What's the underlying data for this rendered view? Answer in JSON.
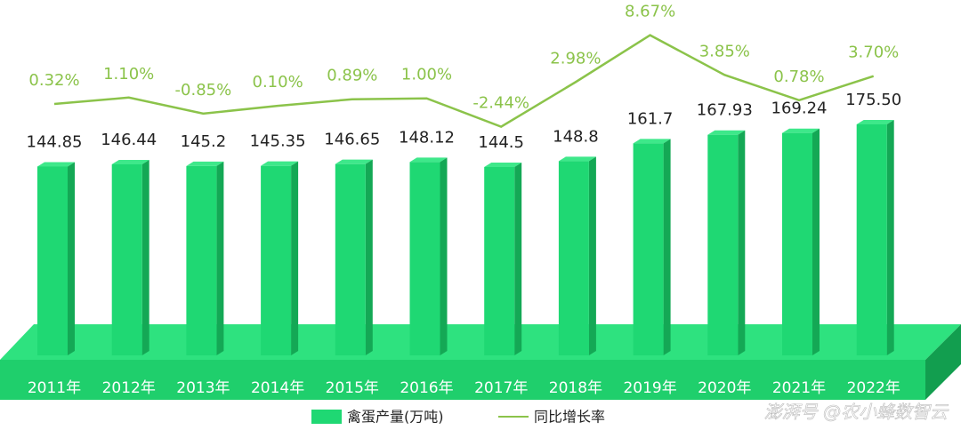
{
  "chart_data": {
    "type": "bar-line",
    "categories": [
      "2011年",
      "2012年",
      "2013年",
      "2014年",
      "2015年",
      "2016年",
      "2017年",
      "2018年",
      "2019年",
      "2020年",
      "2021年",
      "2022年"
    ],
    "series": [
      {
        "name": "禽蛋产量(万吨)",
        "type": "bar",
        "color": "#1fd873",
        "values": [
          144.85,
          146.44,
          145.2,
          145.35,
          146.65,
          148.12,
          144.5,
          148.8,
          161.7,
          167.93,
          169.24,
          175.5
        ],
        "value_labels": [
          "144.85",
          "146.44",
          "145.2",
          "145.35",
          "146.65",
          "148.12",
          "144.5",
          "148.8",
          "161.7",
          "167.93",
          "169.24",
          "175.50"
        ]
      },
      {
        "name": "同比增长率",
        "type": "line",
        "color": "#8bc34a",
        "values": [
          0.32,
          1.1,
          -0.85,
          0.1,
          0.89,
          1.0,
          -2.44,
          2.98,
          8.67,
          3.85,
          0.78,
          3.7
        ],
        "value_labels": [
          "0.32%",
          "1.10%",
          "-0.85%",
          "0.10%",
          "0.89%",
          "1.00%",
          "-2.44%",
          "2.98%",
          "8.67%",
          "3.85%",
          "0.78%",
          "3.70%"
        ]
      }
    ],
    "watermark": "澎湃号 @农小蜂数智云"
  }
}
